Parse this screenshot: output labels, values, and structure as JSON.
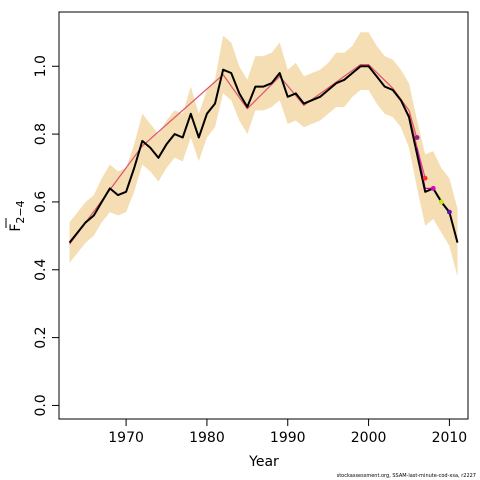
{
  "chart_data": {
    "type": "line",
    "xlabel": "Year",
    "ylabel_main": "F",
    "ylabel_sub": "2−4",
    "xlim": [
      1961.7,
      2012.3
    ],
    "ylim": [
      -0.04,
      1.16
    ],
    "x_ticks": [
      {
        "value": 1970,
        "label": "1970"
      },
      {
        "value": 1980,
        "label": "1980"
      },
      {
        "value": 1990,
        "label": "1990"
      },
      {
        "value": 2000,
        "label": "2000"
      },
      {
        "value": 2010,
        "label": "2010"
      }
    ],
    "y_ticks": [
      {
        "value": 0.0,
        "label": "0.0"
      },
      {
        "value": 0.2,
        "label": "0.2"
      },
      {
        "value": 0.4,
        "label": "0.4"
      },
      {
        "value": 0.6,
        "label": "0.6"
      },
      {
        "value": 0.8,
        "label": "0.8"
      },
      {
        "value": 1.0,
        "label": "1.0"
      }
    ],
    "grid": false,
    "band_color": "#F5DEB3",
    "main": {
      "color": "#000000",
      "x": [
        1963,
        1964,
        1965,
        1966,
        1967,
        1968,
        1969,
        1970,
        1971,
        1972,
        1973,
        1974,
        1975,
        1976,
        1977,
        1978,
        1979,
        1980,
        1981,
        1982,
        1983,
        1984,
        1985,
        1986,
        1987,
        1988,
        1989,
        1990,
        1991,
        1992,
        1993,
        1994,
        1995,
        1996,
        1997,
        1998,
        1999,
        2000,
        2001,
        2002,
        2003,
        2004,
        2005,
        2006,
        2007,
        2008,
        2009,
        2010,
        2011
      ],
      "y": [
        0.48,
        0.51,
        0.54,
        0.56,
        0.6,
        0.64,
        0.62,
        0.63,
        0.7,
        0.78,
        0.76,
        0.73,
        0.77,
        0.8,
        0.79,
        0.86,
        0.79,
        0.86,
        0.89,
        0.99,
        0.98,
        0.92,
        0.88,
        0.94,
        0.94,
        0.95,
        0.98,
        0.91,
        0.92,
        0.89,
        0.9,
        0.91,
        0.93,
        0.95,
        0.96,
        0.98,
        1.0,
        1.0,
        0.97,
        0.94,
        0.93,
        0.9,
        0.85,
        0.74,
        0.63,
        0.64,
        0.6,
        0.57,
        0.48
      ],
      "lower": [
        0.42,
        0.45,
        0.48,
        0.5,
        0.54,
        0.57,
        0.56,
        0.57,
        0.63,
        0.71,
        0.69,
        0.66,
        0.7,
        0.73,
        0.72,
        0.79,
        0.72,
        0.79,
        0.82,
        0.92,
        0.9,
        0.84,
        0.8,
        0.87,
        0.87,
        0.88,
        0.9,
        0.83,
        0.84,
        0.82,
        0.83,
        0.84,
        0.86,
        0.88,
        0.88,
        0.91,
        0.93,
        0.93,
        0.89,
        0.86,
        0.85,
        0.82,
        0.76,
        0.64,
        0.53,
        0.55,
        0.51,
        0.47,
        0.38
      ],
      "upper": [
        0.54,
        0.57,
        0.6,
        0.62,
        0.67,
        0.71,
        0.69,
        0.7,
        0.77,
        0.86,
        0.83,
        0.8,
        0.84,
        0.87,
        0.86,
        0.94,
        0.86,
        0.93,
        0.96,
        1.09,
        1.07,
        1.0,
        0.96,
        1.03,
        1.03,
        1.04,
        1.07,
        0.99,
        1.01,
        0.97,
        0.98,
        0.99,
        1.01,
        1.04,
        1.04,
        1.06,
        1.1,
        1.1,
        1.06,
        1.03,
        1.02,
        0.99,
        0.95,
        0.84,
        0.74,
        0.75,
        0.7,
        0.67,
        0.58
      ]
    },
    "retro": [
      {
        "color": "#DF536B",
        "x": [
          1963,
          1972,
          1982,
          1985,
          1989,
          1992,
          1999,
          2000,
          2003,
          2005,
          2006
        ],
        "y": [
          0.475,
          0.765,
          0.975,
          0.875,
          0.97,
          0.885,
          1.005,
          1.005,
          0.935,
          0.87,
          0.785
        ]
      },
      {
        "color": "#61D04F",
        "x": [
          2006,
          2007,
          2008,
          2009
        ],
        "y": [
          0.74,
          0.63,
          0.64,
          0.605
        ]
      },
      {
        "color": "#DF536B",
        "x": [
          2005,
          2006,
          2007
        ],
        "y": [
          0.86,
          0.76,
          0.67
        ]
      },
      {
        "color": "#CD0BBC",
        "x": [
          2006,
          2007,
          2008
        ],
        "y": [
          0.76,
          0.64,
          0.64
        ]
      },
      {
        "color": "#2297E6",
        "x": [
          2009,
          2010
        ],
        "y": [
          0.6,
          0.565
        ]
      }
    ],
    "retro_endpoints": [
      {
        "x": 2006,
        "y": 0.79,
        "color": "#9E1A8A"
      },
      {
        "x": 2007,
        "y": 0.67,
        "color": "#FF3030"
      },
      {
        "x": 2008,
        "y": 0.64,
        "color": "#CD0BBC"
      },
      {
        "x": 2009,
        "y": 0.6,
        "color": "#C8E020"
      },
      {
        "x": 2010,
        "y": 0.57,
        "color": "#6A0DAD"
      }
    ]
  },
  "footnote": "stockassessment.org, SSAM-last-minute-cod-xsa, r2227"
}
